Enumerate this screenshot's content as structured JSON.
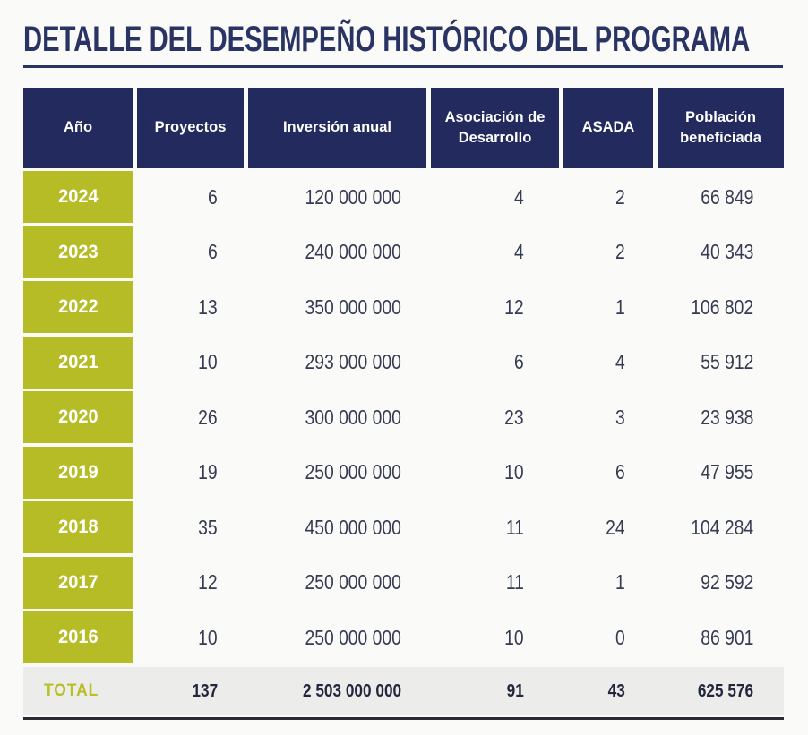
{
  "title": "DETALLE DEL DESEMPEÑO HISTÓRICO DEL PROGRAMA",
  "colors": {
    "navy_header": "#232B5E",
    "olive_year": "#B6BC26",
    "olive_total_label": "#B9BF27",
    "title_navy": "#2A3464",
    "data_text": "#343B52",
    "total_bg": "#ECECEA",
    "page_bg": "#FAFAF8"
  },
  "table": {
    "columns": [
      "Año",
      "Proyectos",
      "Inversión anual",
      "Asociación de Desarrollo",
      "ASADA",
      "Población beneficiada"
    ],
    "rows": [
      {
        "year": "2024",
        "proyectos": "6",
        "inversion": "120 000 000",
        "asociacion": "4",
        "asada": "2",
        "poblacion": "66 849"
      },
      {
        "year": "2023",
        "proyectos": "6",
        "inversion": "240 000 000",
        "asociacion": "4",
        "asada": "2",
        "poblacion": "40 343"
      },
      {
        "year": "2022",
        "proyectos": "13",
        "inversion": "350 000 000",
        "asociacion": "12",
        "asada": "1",
        "poblacion": "106 802"
      },
      {
        "year": "2021",
        "proyectos": "10",
        "inversion": "293 000 000",
        "asociacion": "6",
        "asada": "4",
        "poblacion": "55 912"
      },
      {
        "year": "2020",
        "proyectos": "26",
        "inversion": "300 000 000",
        "asociacion": "23",
        "asada": "3",
        "poblacion": "23 938"
      },
      {
        "year": "2019",
        "proyectos": "19",
        "inversion": "250 000 000",
        "asociacion": "10",
        "asada": "6",
        "poblacion": "47 955"
      },
      {
        "year": "2018",
        "proyectos": "35",
        "inversion": "450 000 000",
        "asociacion": "11",
        "asada": "24",
        "poblacion": "104 284"
      },
      {
        "year": "2017",
        "proyectos": "12",
        "inversion": "250 000 000",
        "asociacion": "11",
        "asada": "1",
        "poblacion": "92 592"
      },
      {
        "year": "2016",
        "proyectos": "10",
        "inversion": "250 000 000",
        "asociacion": "10",
        "asada": "0",
        "poblacion": "86 901"
      }
    ],
    "total": {
      "label": "TOTAL",
      "proyectos": "137",
      "inversion": "2 503 000 000",
      "asociacion": "91",
      "asada": "43",
      "poblacion": "625 576"
    }
  },
  "chart_data": {
    "type": "table",
    "title": "DETALLE DEL DESEMPEÑO HISTÓRICO DEL PROGRAMA",
    "columns": [
      "Año",
      "Proyectos",
      "Inversión anual",
      "Asociación de Desarrollo",
      "ASADA",
      "Población beneficiada"
    ],
    "years": [
      2024,
      2023,
      2022,
      2021,
      2020,
      2019,
      2018,
      2017,
      2016
    ],
    "series": [
      {
        "name": "Proyectos",
        "values": [
          6,
          6,
          13,
          10,
          26,
          19,
          35,
          12,
          10
        ],
        "total": 137
      },
      {
        "name": "Inversión anual",
        "values": [
          120000000,
          240000000,
          350000000,
          293000000,
          300000000,
          250000000,
          450000000,
          250000000,
          250000000
        ],
        "total": 2503000000
      },
      {
        "name": "Asociación de Desarrollo",
        "values": [
          4,
          4,
          12,
          6,
          23,
          10,
          11,
          11,
          10
        ],
        "total": 91
      },
      {
        "name": "ASADA",
        "values": [
          2,
          2,
          1,
          4,
          3,
          6,
          24,
          1,
          0
        ],
        "total": 43
      },
      {
        "name": "Población beneficiada",
        "values": [
          66849,
          40343,
          106802,
          55912,
          23938,
          47955,
          104284,
          92592,
          86901
        ],
        "total": 625576
      }
    ]
  }
}
